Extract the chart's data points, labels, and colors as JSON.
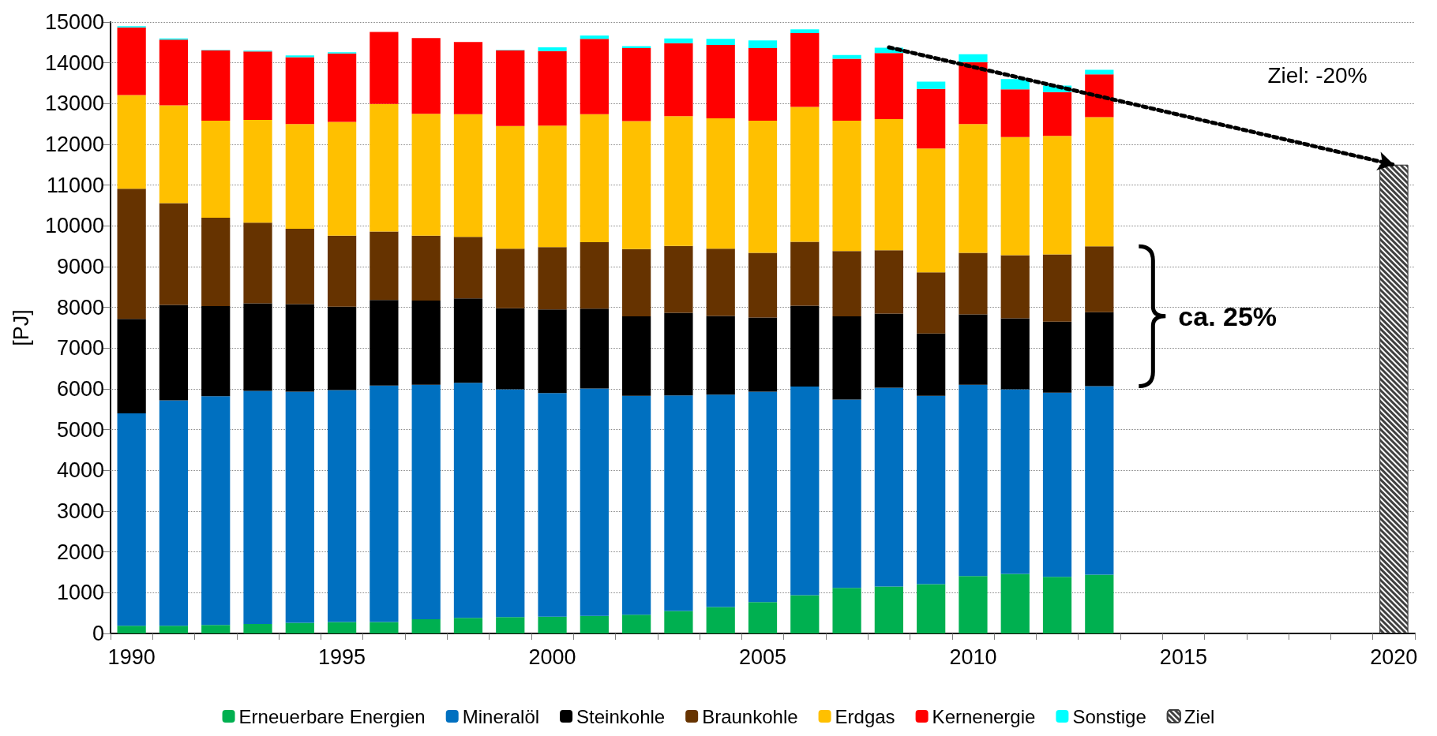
{
  "chart_data": {
    "type": "bar",
    "stacked": true,
    "ylabel": "[PJ]",
    "categories": [
      "1990",
      null,
      null,
      null,
      null,
      "1995",
      null,
      null,
      null,
      null,
      "2000",
      null,
      null,
      null,
      null,
      "2005",
      null,
      null,
      null,
      null,
      "2010",
      null,
      null,
      null,
      null,
      "2015",
      null,
      null,
      null,
      null,
      "2020"
    ],
    "series": [
      {
        "name": "Erneuerbare Energien",
        "color": "#00b050",
        "values": [
          190,
          190,
          210,
          230,
          260,
          280,
          280,
          350,
          380,
          400,
          410,
          430,
          460,
          550,
          650,
          770,
          940,
          1120,
          1150,
          1210,
          1410,
          1460,
          1390,
          1440,
          null,
          null,
          null,
          null,
          null,
          null,
          null
        ]
      },
      {
        "name": "Mineralöl",
        "color": "#0070c0",
        "values": [
          5210,
          5530,
          5610,
          5720,
          5670,
          5690,
          5800,
          5750,
          5770,
          5590,
          5490,
          5580,
          5370,
          5290,
          5210,
          5160,
          5120,
          4620,
          4880,
          4620,
          4690,
          4530,
          4520,
          4630,
          null,
          null,
          null,
          null,
          null,
          null,
          null
        ]
      },
      {
        "name": "Steinkohle",
        "color": "#000000",
        "values": [
          2320,
          2340,
          2210,
          2150,
          2150,
          2050,
          2100,
          2070,
          2070,
          1990,
          2050,
          1960,
          1950,
          2030,
          1930,
          1820,
          1980,
          2040,
          1820,
          1530,
          1730,
          1740,
          1740,
          1810,
          null,
          null,
          null,
          null,
          null,
          null,
          null
        ]
      },
      {
        "name": "Braunkohle",
        "color": "#663300",
        "values": [
          3190,
          2500,
          2170,
          1980,
          1850,
          1740,
          1680,
          1590,
          1510,
          1460,
          1530,
          1630,
          1650,
          1640,
          1650,
          1590,
          1570,
          1600,
          1550,
          1500,
          1510,
          1550,
          1650,
          1620,
          null,
          null,
          null,
          null,
          null,
          null,
          null
        ]
      },
      {
        "name": "Erdgas",
        "color": "#ffc000",
        "values": [
          2300,
          2400,
          2380,
          2520,
          2570,
          2790,
          3130,
          2990,
          3010,
          3010,
          2980,
          3140,
          3140,
          3180,
          3200,
          3240,
          3310,
          3200,
          3220,
          3040,
          3160,
          2900,
          2910,
          3170,
          null,
          null,
          null,
          null,
          null,
          null,
          null
        ]
      },
      {
        "name": "Kernenergie",
        "color": "#ff0000",
        "values": [
          1660,
          1610,
          1730,
          1680,
          1640,
          1680,
          1770,
          1860,
          1770,
          1860,
          1830,
          1850,
          1790,
          1790,
          1800,
          1780,
          1810,
          1520,
          1620,
          1460,
          1520,
          1170,
          1070,
          1050,
          null,
          null,
          null,
          null,
          null,
          null,
          null
        ]
      },
      {
        "name": "Sonstige",
        "color": "#00ffff",
        "values": [
          30,
          30,
          10,
          20,
          40,
          30,
          0,
          0,
          0,
          10,
          90,
          80,
          50,
          120,
          150,
          190,
          90,
          90,
          130,
          180,
          190,
          250,
          160,
          110,
          null,
          null,
          null,
          null,
          null,
          null,
          null
        ]
      },
      {
        "name": "Ziel",
        "color": "#404040",
        "values": [
          null,
          null,
          null,
          null,
          null,
          null,
          null,
          null,
          null,
          null,
          null,
          null,
          null,
          null,
          null,
          null,
          null,
          null,
          null,
          null,
          null,
          null,
          null,
          null,
          null,
          null,
          null,
          null,
          null,
          null,
          11500
        ]
      },
      {
        "type": "line",
        "line_style": "dotted",
        "color": "#000000",
        "values": [
          null,
          null,
          null,
          null,
          null,
          null,
          null,
          null,
          null,
          null,
          null,
          null,
          null,
          null,
          null,
          null,
          null,
          null,
          14380,
          null,
          null,
          null,
          null,
          null,
          null,
          null,
          null,
          null,
          null,
          null,
          11500
        ]
      }
    ],
    "ylim": [
      0,
      15000
    ],
    "yticks": [
      0,
      1000,
      2000,
      3000,
      4000,
      5000,
      6000,
      7000,
      8000,
      9000,
      10000,
      11000,
      12000,
      13000,
      14000,
      15000
    ],
    "grid": "y",
    "legend": "bottom",
    "annotations": [
      "Ziel: -20%",
      "ca. 25%"
    ]
  }
}
